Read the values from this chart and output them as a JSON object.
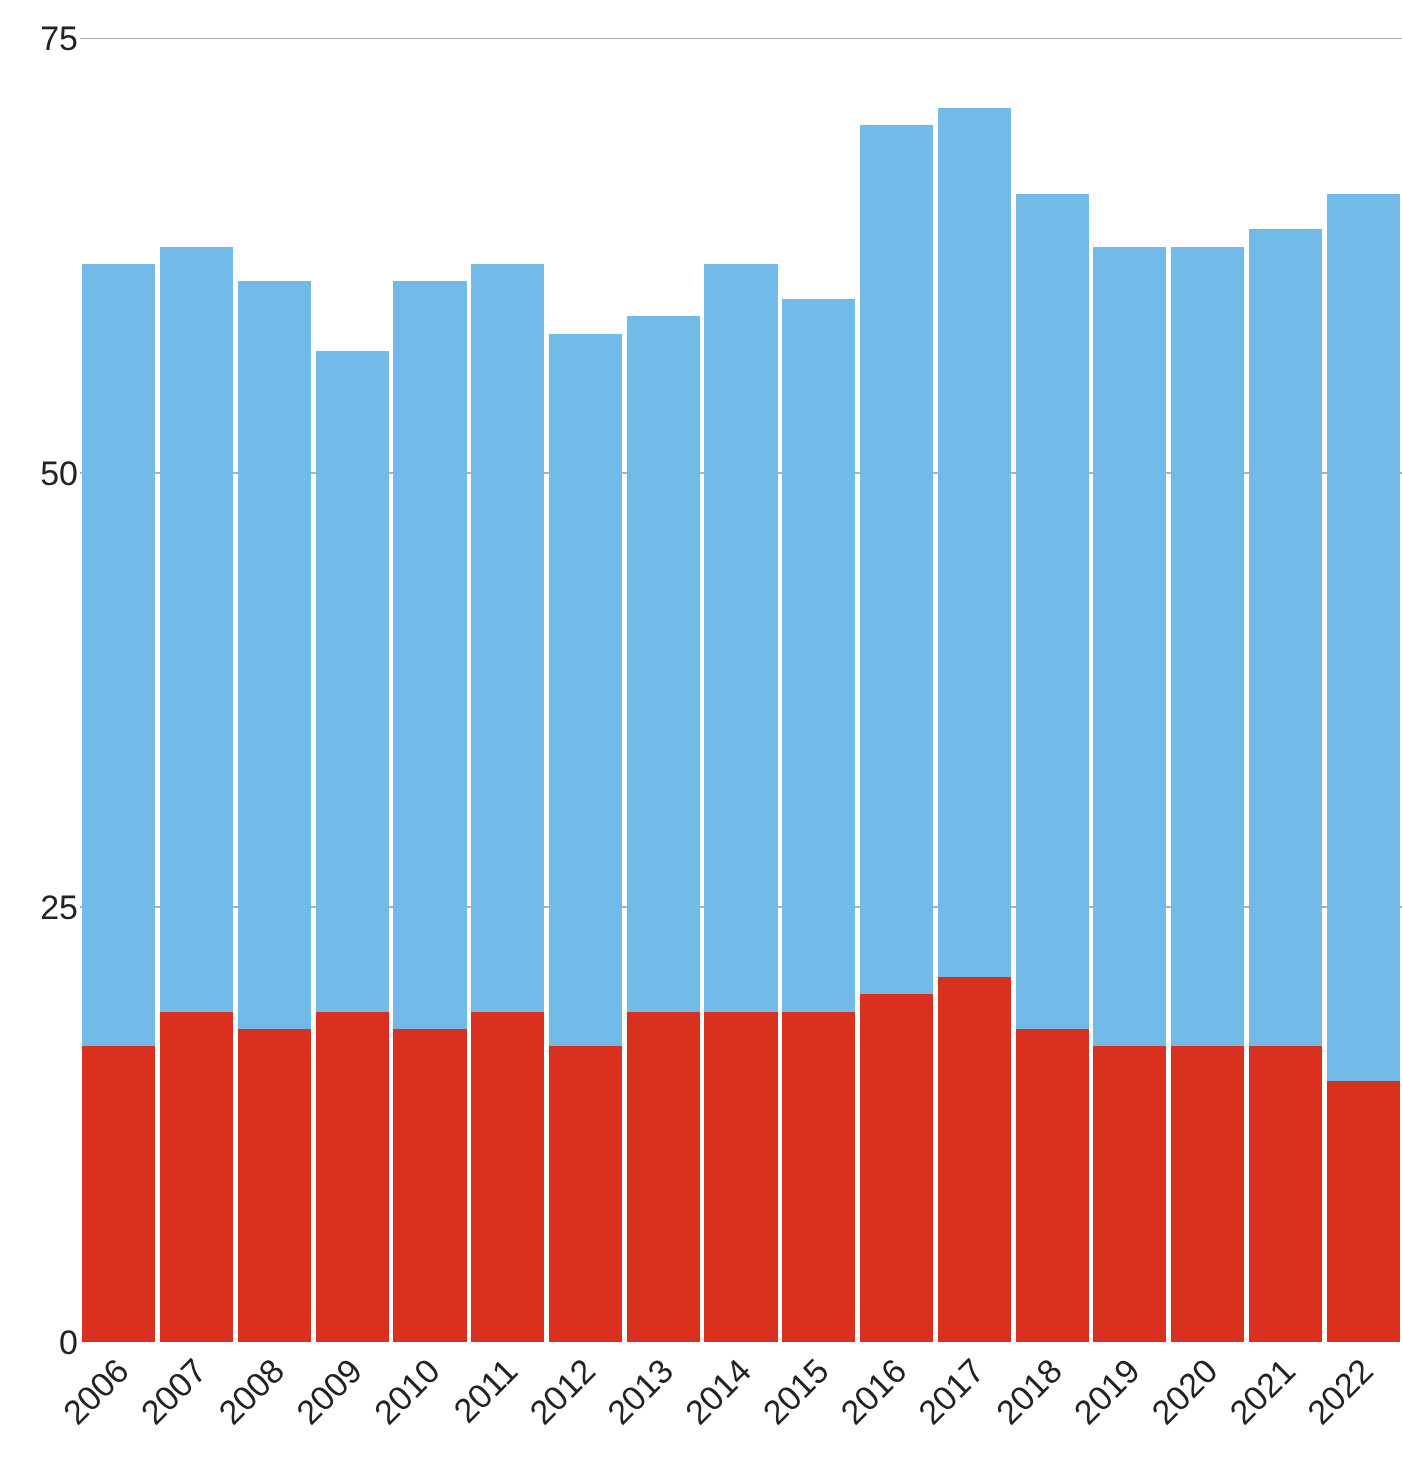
{
  "chart_data": {
    "type": "bar",
    "stacked": true,
    "categories": [
      "2006",
      "2007",
      "2008",
      "2009",
      "2010",
      "2011",
      "2012",
      "2013",
      "2014",
      "2015",
      "2016",
      "2017",
      "2018",
      "2019",
      "2020",
      "2021",
      "2022"
    ],
    "series": [
      {
        "color": "#d93020",
        "values": [
          17,
          19,
          18,
          19,
          18,
          19,
          17,
          19,
          19,
          19,
          20,
          21,
          18,
          17,
          17,
          17,
          15
        ]
      },
      {
        "color": "#72bae8",
        "values": [
          45,
          44,
          43,
          38,
          43,
          43,
          41,
          40,
          43,
          41,
          50,
          50,
          48,
          46,
          46,
          47,
          51
        ]
      }
    ],
    "ylim": [
      0,
      75
    ],
    "yticks": [
      0,
      25,
      50,
      75
    ],
    "grid": "y"
  }
}
